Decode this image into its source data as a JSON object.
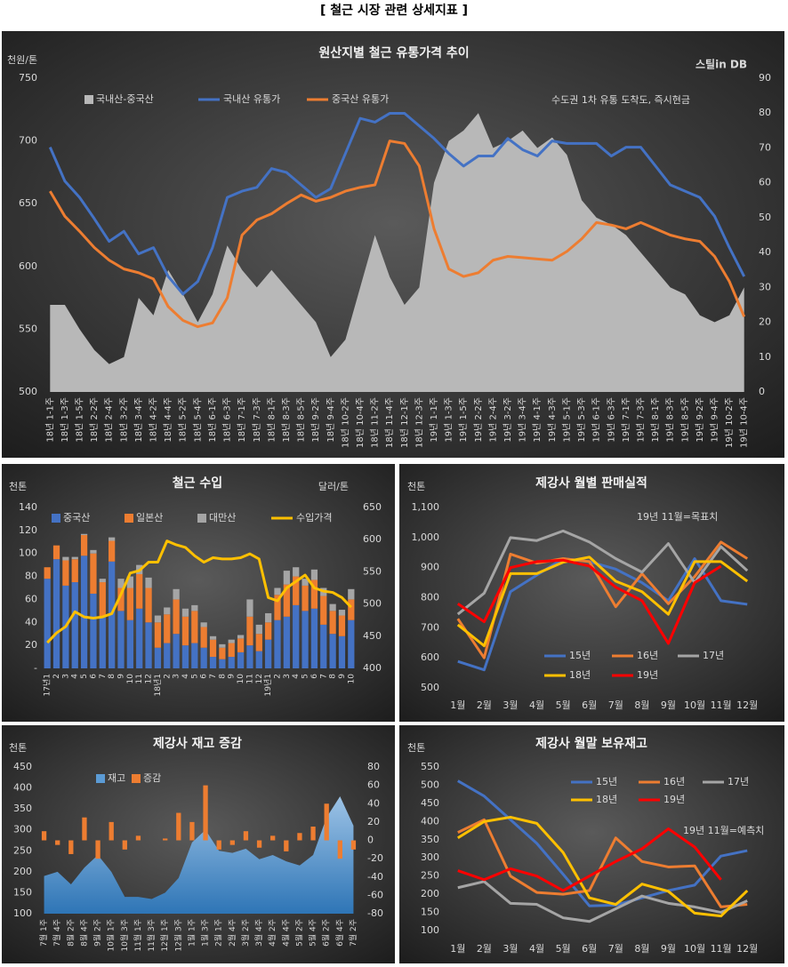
{
  "page_title": "[ 철근 시장 관련 상세지표 ]",
  "chart_data": [
    {
      "type": "combo",
      "title": "원산지별 철근 유통가격 추이",
      "y_label": "천원/톤",
      "logo": "스틸in DB",
      "annotation": "수도권 1차 유통 도착도, 즉시현금",
      "categories": [
        "18년 1-1주",
        "18년 1-3주",
        "18년 1-5주",
        "18년 2-2주",
        "18년 2-4주",
        "18년 3-2주",
        "18년 3-4주",
        "18년 4-2주",
        "18년 4-4주",
        "18년 5-2주",
        "18년 5-4주",
        "18년 6-1주",
        "18년 6-3주",
        "18년 7-1주",
        "18년 7-3주",
        "18년 8-1주",
        "18년 8-3주",
        "18년 8-5주",
        "18년 9-2주",
        "18년 9-4주",
        "18년 10-2주",
        "18년 10-4주",
        "18년 11-2주",
        "18년 11-4주",
        "18년 12-1주",
        "18년 12-3주",
        "19년 1-1주",
        "19년 1-3주",
        "19년 1-5주",
        "19년 2-2주",
        "19년 2-4주",
        "19년 3-2주",
        "19년 3-4주",
        "19년 4-1주",
        "19년 4-3주",
        "19년 5-1주",
        "19년 5-3주",
        "19년 6-1주",
        "19년 6-3주",
        "19년 7-1주",
        "19년 7-3주",
        "19년 8-1주",
        "19년 8-3주",
        "19년 8-5주",
        "19년 9-2주",
        "19년 9-4주",
        "19년 10-2주",
        "19년 10-4주"
      ],
      "series": [
        {
          "name": "국내산-중국산",
          "type": "area",
          "axis": "y2",
          "color": "#b8b8b8",
          "values": [
            25,
            25,
            18,
            12,
            8,
            10,
            27,
            22,
            35,
            28,
            20,
            28,
            42,
            35,
            30,
            35,
            30,
            25,
            20,
            10,
            15,
            30,
            45,
            33,
            25,
            30,
            60,
            72,
            75,
            80,
            70,
            72,
            75,
            70,
            73,
            68,
            55,
            50,
            48,
            45,
            40,
            35,
            30,
            28,
            22,
            20,
            22,
            30
          ]
        },
        {
          "name": "국내산 유통가",
          "type": "line",
          "color": "#4472c4",
          "values": [
            695,
            668,
            655,
            638,
            620,
            628,
            610,
            615,
            592,
            578,
            588,
            615,
            655,
            660,
            663,
            678,
            675,
            665,
            655,
            662,
            690,
            718,
            715,
            722,
            722,
            712,
            702,
            690,
            680,
            688,
            688,
            702,
            693,
            688,
            700,
            698,
            698,
            698,
            688,
            695,
            695,
            680,
            665,
            660,
            655,
            640,
            615,
            592
          ]
        },
        {
          "name": "중국산 유통가",
          "type": "line",
          "color": "#ed7d31",
          "values": [
            660,
            640,
            628,
            615,
            605,
            598,
            595,
            590,
            568,
            557,
            552,
            555,
            575,
            625,
            637,
            642,
            650,
            657,
            652,
            655,
            660,
            663,
            665,
            700,
            698,
            680,
            630,
            598,
            592,
            595,
            605,
            608,
            607,
            606,
            605,
            612,
            622,
            635,
            633,
            630,
            635,
            630,
            625,
            622,
            620,
            608,
            588,
            560
          ]
        }
      ],
      "ylim": [
        500,
        750
      ],
      "yticks": [
        500,
        550,
        600,
        650,
        700,
        750
      ],
      "y2lim": [
        0,
        90
      ],
      "y2ticks": [
        0,
        10,
        20,
        30,
        40,
        50,
        60,
        70,
        80,
        90
      ],
      "grid": false
    },
    {
      "type": "combo",
      "title": "철근 수입",
      "y_label": "천톤",
      "y2_label": "달러/톤",
      "stacked": true,
      "categories": [
        "17년1",
        "2",
        "3",
        "4",
        "5",
        "6",
        "7",
        "8",
        "9",
        "10",
        "11",
        "12",
        "18년1",
        "2",
        "3",
        "4",
        "5",
        "6",
        "7",
        "8",
        "9",
        "10",
        "11",
        "12",
        "19년1",
        "2",
        "3",
        "4",
        "5",
        "6",
        "7",
        "8",
        "9",
        "10"
      ],
      "series": [
        {
          "name": "중국산",
          "type": "bar",
          "color": "#4472c4",
          "values": [
            78,
            95,
            72,
            75,
            98,
            65,
            45,
            93,
            50,
            42,
            52,
            40,
            18,
            22,
            30,
            20,
            22,
            18,
            10,
            8,
            10,
            14,
            20,
            15,
            25,
            42,
            45,
            55,
            50,
            52,
            38,
            30,
            28,
            42
          ]
        },
        {
          "name": "일본산",
          "type": "bar",
          "color": "#ed7d31",
          "values": [
            10,
            12,
            22,
            20,
            18,
            35,
            30,
            18,
            20,
            28,
            30,
            30,
            22,
            25,
            30,
            25,
            28,
            18,
            15,
            10,
            12,
            12,
            25,
            15,
            15,
            22,
            28,
            25,
            22,
            25,
            25,
            20,
            18,
            18
          ]
        },
        {
          "name": "대만산",
          "type": "bar",
          "color": "#a5a5a5",
          "values": [
            0,
            0,
            3,
            2,
            1,
            3,
            3,
            3,
            8,
            10,
            8,
            9,
            6,
            6,
            9,
            7,
            5,
            4,
            3,
            3,
            3,
            3,
            15,
            8,
            8,
            6,
            12,
            8,
            6,
            9,
            7,
            6,
            5,
            9
          ]
        },
        {
          "name": "수입가격",
          "type": "line",
          "axis": "y2",
          "color": "#ffc000",
          "values": [
            440,
            455,
            465,
            488,
            480,
            478,
            480,
            485,
            515,
            548,
            552,
            565,
            565,
            598,
            592,
            588,
            575,
            565,
            572,
            570,
            570,
            572,
            578,
            570,
            510,
            505,
            525,
            535,
            545,
            525,
            520,
            518,
            510,
            495
          ]
        }
      ],
      "ylim": [
        0,
        140
      ],
      "yticks": [
        {
          "value": 0,
          "label": "-"
        },
        20,
        40,
        60,
        80,
        100,
        120,
        140
      ],
      "y2lim": [
        400,
        650
      ],
      "y2ticks": [
        400,
        450,
        500,
        550,
        600,
        650
      ],
      "grid": false
    },
    {
      "type": "line",
      "title": "제강사 월별 판매실적",
      "y_label": "천톤",
      "annotation": "19년 11월=목표치",
      "categories": [
        "1월",
        "2월",
        "3월",
        "4월",
        "5월",
        "6월",
        "7월",
        "8월",
        "9월",
        "10월",
        "11월",
        "12월"
      ],
      "series": [
        {
          "name": "15년",
          "color": "#4472c4",
          "values": [
            588,
            560,
            820,
            875,
            930,
            920,
            895,
            850,
            790,
            930,
            790,
            778
          ]
        },
        {
          "name": "16년",
          "color": "#ed7d31",
          "values": [
            730,
            600,
            945,
            915,
            930,
            920,
            770,
            880,
            780,
            870,
            985,
            930
          ]
        },
        {
          "name": "17년",
          "color": "#a5a5a5",
          "values": [
            745,
            815,
            1000,
            990,
            1022,
            985,
            930,
            885,
            980,
            850,
            970,
            890
          ]
        },
        {
          "name": "18년",
          "color": "#ffc000",
          "values": [
            710,
            640,
            880,
            880,
            918,
            935,
            855,
            820,
            745,
            920,
            920,
            855
          ]
        },
        {
          "name": "19년",
          "color": "#ff0000",
          "values": [
            780,
            720,
            900,
            920,
            925,
            905,
            835,
            790,
            648,
            850,
            905,
            null
          ]
        }
      ],
      "ylim": [
        500,
        1100
      ],
      "yticks": [
        500,
        600,
        700,
        800,
        900,
        {
          "value": 1000,
          "label": "1,000"
        },
        {
          "value": 1100,
          "label": "1,100"
        }
      ],
      "grid": false
    },
    {
      "type": "combo",
      "title": "제강사 재고 증감",
      "y_label": "천톤",
      "categories": [
        "7월 1주",
        "7월 4주",
        "8월 2주",
        "8월 4주",
        "9월 2주",
        "10월 1주",
        "10월 3주",
        "11월 1주",
        "11월 3주",
        "12월 1주",
        "12월 3주",
        "1월 1주",
        "1월 3주",
        "2월 1주",
        "2월 4주",
        "3월 2주",
        "3월 4주",
        "4월 2주",
        "4월 4주",
        "5월 2주",
        "5월 4주",
        "6월 2주",
        "6월 4주",
        "7월 2주"
      ],
      "series": [
        {
          "name": "재고",
          "type": "area",
          "color": "#5b9bd5",
          "values": [
            190,
            200,
            170,
            210,
            240,
            200,
            140,
            140,
            135,
            150,
            185,
            270,
            300,
            250,
            245,
            255,
            230,
            240,
            225,
            215,
            240,
            330,
            380,
            310
          ]
        },
        {
          "name": "증감",
          "type": "bar",
          "axis": "y2",
          "color": "#ed7d31",
          "values": [
            10,
            -5,
            -15,
            25,
            -20,
            20,
            -10,
            5,
            0,
            2,
            30,
            20,
            60,
            -10,
            -5,
            10,
            -8,
            5,
            -12,
            8,
            15,
            40,
            -20,
            -10
          ]
        }
      ],
      "ylim": [
        100,
        450
      ],
      "yticks": [
        100,
        150,
        200,
        250,
        300,
        350,
        400,
        450
      ],
      "y2lim": [
        -80,
        80
      ],
      "y2ticks": [
        -80,
        -60,
        -40,
        -20,
        0,
        20,
        40,
        60,
        80
      ],
      "grid": false
    },
    {
      "type": "line",
      "title": "제강사 월말 보유재고",
      "y_label": "천톤",
      "annotation": "19년 11월=예측치",
      "categories": [
        "1월",
        "2월",
        "3월",
        "4월",
        "5월",
        "6월",
        "7월",
        "8월",
        "9월",
        "10월",
        "11월",
        "12월"
      ],
      "series": [
        {
          "name": "15년",
          "color": "#4472c4",
          "values": [
            512,
            470,
            405,
            340,
            255,
            168,
            170,
            190,
            210,
            225,
            305,
            320
          ]
        },
        {
          "name": "16년",
          "color": "#ed7d31",
          "values": [
            370,
            405,
            250,
            205,
            200,
            210,
            355,
            290,
            275,
            278,
            165,
            172
          ]
        },
        {
          "name": "17년",
          "color": "#a5a5a5",
          "values": [
            218,
            235,
            175,
            172,
            135,
            125,
            160,
            195,
            175,
            165,
            150,
            182
          ]
        },
        {
          "name": "18년",
          "color": "#ffc000",
          "values": [
            355,
            400,
            412,
            395,
            315,
            190,
            172,
            228,
            208,
            148,
            140,
            210
          ]
        },
        {
          "name": "19년",
          "color": "#ff0000",
          "values": [
            265,
            240,
            270,
            250,
            210,
            250,
            290,
            325,
            380,
            330,
            240,
            null
          ]
        }
      ],
      "ylim": [
        100,
        550
      ],
      "yticks": [
        100,
        150,
        200,
        250,
        300,
        350,
        400,
        450,
        500,
        550
      ],
      "grid": false
    }
  ]
}
